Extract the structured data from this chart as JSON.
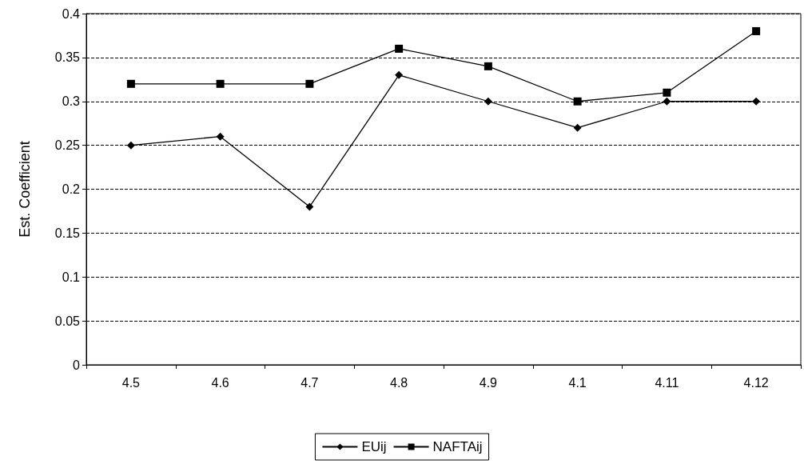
{
  "chart_data": {
    "type": "line",
    "ylabel": "Est. Coefficient",
    "categories": [
      "4.5",
      "4.6",
      "4.7",
      "4.8",
      "4.9",
      "4.1",
      "4.11",
      "4.12"
    ],
    "series": [
      {
        "name": "EUij",
        "color": "#000000",
        "marker": "diamond",
        "values": [
          0.25,
          0.26,
          0.18,
          0.33,
          0.3,
          0.27,
          0.3,
          0.3
        ]
      },
      {
        "name": "NAFTAij",
        "color": "#000000",
        "marker": "square",
        "values": [
          0.32,
          0.32,
          0.32,
          0.36,
          0.34,
          0.3,
          0.31,
          0.38
        ]
      }
    ],
    "ylim": [
      0,
      0.4
    ],
    "yticks": [
      0,
      0.05,
      0.1,
      0.15,
      0.2,
      0.25,
      0.3,
      0.35,
      0.4
    ],
    "grid": "y",
    "legend": "bottom",
    "line_style": "solid"
  }
}
